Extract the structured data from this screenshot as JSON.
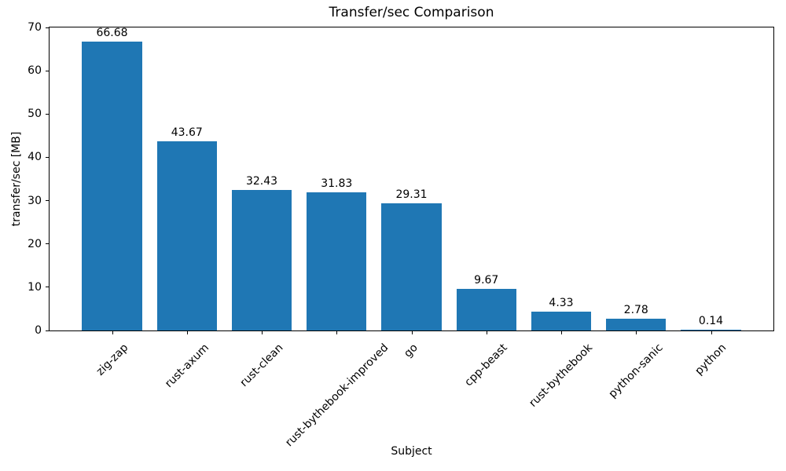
{
  "chart_data": {
    "type": "bar",
    "title": "Transfer/sec Comparison",
    "xlabel": "Subject",
    "ylabel": "transfer/sec [MB]",
    "categories": [
      "zig-zap",
      "rust-axum",
      "rust-clean",
      "rust-bythebook-improved",
      "go",
      "cpp-beast",
      "rust-bythebook",
      "python-sanic",
      "python"
    ],
    "values": [
      66.68,
      43.67,
      32.43,
      31.83,
      29.31,
      9.67,
      4.33,
      2.78,
      0.14
    ],
    "value_labels": [
      "66.68",
      "43.67",
      "32.43",
      "31.83",
      "29.31",
      "9.67",
      "4.33",
      "2.78",
      "0.14"
    ],
    "yticks": [
      0,
      10,
      20,
      30,
      40,
      50,
      60,
      70
    ],
    "ylim": [
      0,
      70
    ],
    "bar_color": "#1f77b4",
    "background_color": "#ffffff",
    "text_color": "#000000",
    "grid": false,
    "legend": null,
    "xtick_rotation_deg": 45
  }
}
